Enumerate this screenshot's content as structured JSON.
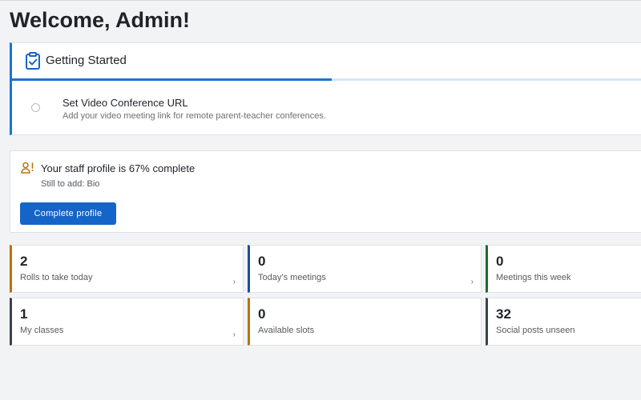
{
  "header": {
    "title": "Welcome, Admin!"
  },
  "getting_started": {
    "icon": "clipboard-check-icon",
    "title": "Getting Started",
    "progress_fraction": 0.5,
    "accent_color": "#1a73d6",
    "task": {
      "title": "Set Video Conference URL",
      "description": "Add your video meeting link for remote parent-teacher conferences."
    }
  },
  "profile": {
    "icon": "user-alert-icon",
    "title": "Your staff profile is 67% complete",
    "subtitle": "Still to add: Bio",
    "button_label": "Complete profile",
    "button_color": "#1565c8"
  },
  "stats": [
    {
      "value": "2",
      "label": "Rolls to take today",
      "color": "#b8730a",
      "chevron": "›"
    },
    {
      "value": "0",
      "label": "Today’s meetings",
      "color": "#1a4f9c",
      "chevron": "›"
    },
    {
      "value": "0",
      "label": "Meetings this week",
      "color": "#1e6b2e",
      "chevron": ""
    },
    {
      "value": "1",
      "label": "My classes",
      "color": "#3a434d",
      "chevron": "›"
    },
    {
      "value": "0",
      "label": "Available slots",
      "color": "#b8730a",
      "chevron": ""
    },
    {
      "value": "32",
      "label": "Social posts unseen",
      "color": "#3a434d",
      "chevron": ""
    }
  ]
}
